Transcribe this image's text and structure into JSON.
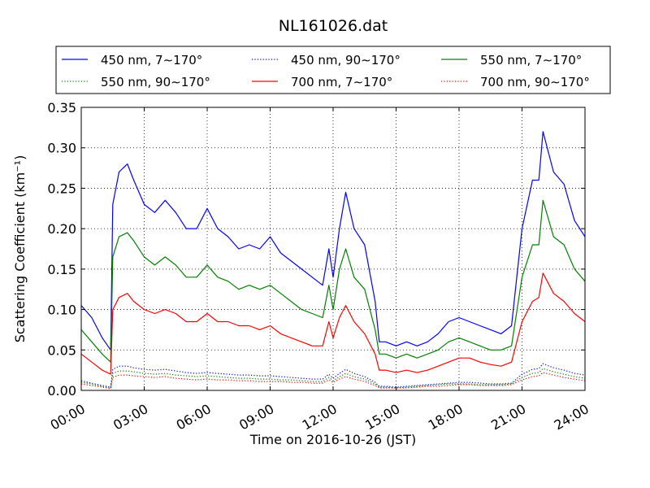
{
  "chart_data": {
    "type": "line",
    "title": "NL161026.dat",
    "xlabel": "Time on 2016-10-26 (JST)",
    "ylabel": "Scattering Coefficient (km⁻¹)",
    "xlim": [
      0,
      24
    ],
    "ylim": [
      0,
      0.35
    ],
    "x_ticks": [
      "00:00",
      "03:00",
      "06:00",
      "09:00",
      "12:00",
      "15:00",
      "18:00",
      "21:00",
      "24:00"
    ],
    "y_ticks": [
      "0.00",
      "0.05",
      "0.10",
      "0.15",
      "0.20",
      "0.25",
      "0.30",
      "0.35"
    ],
    "grid": true,
    "legend_position": "top",
    "x": [
      0.0,
      0.5,
      1.0,
      1.4,
      1.5,
      1.8,
      2.2,
      2.5,
      3.0,
      3.5,
      4.0,
      4.5,
      5.0,
      5.5,
      6.0,
      6.5,
      7.0,
      7.5,
      8.0,
      8.5,
      9.0,
      9.5,
      10.0,
      10.5,
      11.0,
      11.5,
      11.8,
      12.0,
      12.3,
      12.6,
      13.0,
      13.5,
      14.0,
      14.2,
      14.5,
      15.0,
      15.5,
      16.0,
      16.5,
      17.0,
      17.5,
      18.0,
      18.5,
      19.0,
      19.5,
      20.0,
      20.5,
      21.0,
      21.5,
      21.8,
      22.0,
      22.5,
      23.0,
      23.5,
      24.0
    ],
    "series": [
      {
        "name": "450 nm, 7∼170°",
        "color": "#0000ff",
        "style": "solid",
        "values": [
          0.105,
          0.09,
          0.065,
          0.05,
          0.23,
          0.27,
          0.28,
          0.26,
          0.23,
          0.22,
          0.235,
          0.22,
          0.2,
          0.2,
          0.225,
          0.2,
          0.19,
          0.175,
          0.18,
          0.175,
          0.19,
          0.17,
          0.16,
          0.15,
          0.14,
          0.13,
          0.175,
          0.14,
          0.2,
          0.245,
          0.2,
          0.18,
          0.11,
          0.06,
          0.06,
          0.055,
          0.06,
          0.055,
          0.06,
          0.07,
          0.085,
          0.09,
          0.085,
          0.08,
          0.075,
          0.07,
          0.08,
          0.2,
          0.26,
          0.26,
          0.32,
          0.27,
          0.255,
          0.21,
          0.19
        ]
      },
      {
        "name": "450 nm, 90∼170°",
        "color": "#0000ff",
        "style": "dotted",
        "values": [
          0.012,
          0.009,
          0.006,
          0.004,
          0.026,
          0.03,
          0.03,
          0.028,
          0.026,
          0.025,
          0.026,
          0.024,
          0.022,
          0.021,
          0.022,
          0.021,
          0.02,
          0.019,
          0.019,
          0.018,
          0.018,
          0.017,
          0.016,
          0.015,
          0.014,
          0.014,
          0.02,
          0.015,
          0.021,
          0.026,
          0.021,
          0.017,
          0.01,
          0.005,
          0.005,
          0.004,
          0.005,
          0.006,
          0.007,
          0.008,
          0.009,
          0.01,
          0.01,
          0.009,
          0.008,
          0.008,
          0.009,
          0.02,
          0.026,
          0.027,
          0.033,
          0.028,
          0.025,
          0.021,
          0.019
        ]
      },
      {
        "name": "550 nm, 7∼170°",
        "color": "#008000",
        "style": "solid",
        "values": [
          0.075,
          0.06,
          0.045,
          0.035,
          0.165,
          0.19,
          0.195,
          0.185,
          0.165,
          0.155,
          0.165,
          0.155,
          0.14,
          0.14,
          0.155,
          0.14,
          0.135,
          0.125,
          0.13,
          0.125,
          0.13,
          0.12,
          0.11,
          0.1,
          0.095,
          0.09,
          0.13,
          0.1,
          0.15,
          0.175,
          0.14,
          0.125,
          0.075,
          0.045,
          0.045,
          0.04,
          0.045,
          0.04,
          0.045,
          0.05,
          0.06,
          0.065,
          0.06,
          0.055,
          0.05,
          0.05,
          0.055,
          0.14,
          0.18,
          0.18,
          0.235,
          0.19,
          0.18,
          0.15,
          0.135
        ]
      },
      {
        "name": "550 nm, 90∼170°",
        "color": "#008000",
        "style": "dotted",
        "values": [
          0.01,
          0.008,
          0.005,
          0.003,
          0.021,
          0.024,
          0.024,
          0.023,
          0.021,
          0.02,
          0.021,
          0.019,
          0.018,
          0.017,
          0.018,
          0.017,
          0.016,
          0.015,
          0.015,
          0.014,
          0.014,
          0.013,
          0.013,
          0.012,
          0.011,
          0.011,
          0.016,
          0.012,
          0.017,
          0.021,
          0.017,
          0.014,
          0.008,
          0.004,
          0.004,
          0.003,
          0.004,
          0.005,
          0.006,
          0.007,
          0.008,
          0.008,
          0.008,
          0.007,
          0.007,
          0.007,
          0.008,
          0.016,
          0.021,
          0.022,
          0.027,
          0.023,
          0.02,
          0.017,
          0.015
        ]
      },
      {
        "name": "700 nm, 7∼170°",
        "color": "#ff0000",
        "style": "solid",
        "values": [
          0.045,
          0.035,
          0.025,
          0.02,
          0.1,
          0.115,
          0.12,
          0.11,
          0.1,
          0.095,
          0.1,
          0.095,
          0.085,
          0.085,
          0.095,
          0.085,
          0.085,
          0.08,
          0.08,
          0.075,
          0.08,
          0.07,
          0.065,
          0.06,
          0.055,
          0.055,
          0.085,
          0.065,
          0.09,
          0.105,
          0.085,
          0.07,
          0.045,
          0.025,
          0.025,
          0.022,
          0.025,
          0.022,
          0.025,
          0.03,
          0.035,
          0.04,
          0.04,
          0.035,
          0.032,
          0.03,
          0.035,
          0.085,
          0.11,
          0.115,
          0.145,
          0.12,
          0.11,
          0.095,
          0.085
        ]
      },
      {
        "name": "700 nm, 90∼170°",
        "color": "#ff0000",
        "style": "dotted",
        "values": [
          0.008,
          0.006,
          0.004,
          0.002,
          0.016,
          0.019,
          0.019,
          0.018,
          0.017,
          0.016,
          0.017,
          0.015,
          0.014,
          0.013,
          0.014,
          0.013,
          0.013,
          0.012,
          0.012,
          0.011,
          0.011,
          0.011,
          0.01,
          0.01,
          0.009,
          0.009,
          0.013,
          0.01,
          0.014,
          0.017,
          0.014,
          0.011,
          0.006,
          0.003,
          0.003,
          0.003,
          0.003,
          0.004,
          0.005,
          0.005,
          0.006,
          0.007,
          0.007,
          0.006,
          0.006,
          0.006,
          0.007,
          0.013,
          0.017,
          0.018,
          0.022,
          0.019,
          0.016,
          0.014,
          0.012
        ]
      }
    ]
  }
}
